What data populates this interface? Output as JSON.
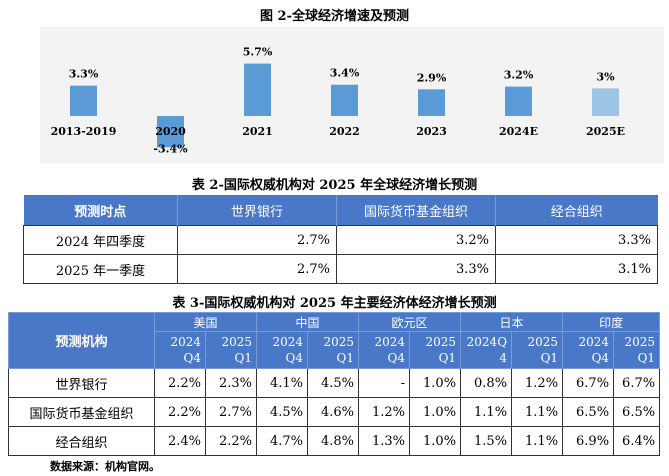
{
  "chart": {
    "title": "图 2-全球经济增速及预测"
  },
  "chart_data": {
    "type": "bar",
    "title": "图 2-全球经济增速及预测",
    "categories": [
      "2013-2019",
      "2020",
      "2021",
      "2022",
      "2023",
      "2024E",
      "2025E"
    ],
    "values": [
      3.3,
      -3.4,
      5.7,
      3.4,
      2.9,
      3.2,
      3.0
    ],
    "value_labels": [
      "3.3%",
      "-3.4%",
      "5.7%",
      "3.4%",
      "2.9%",
      "3.2%",
      "3%"
    ],
    "ylim": [
      -4,
      7
    ],
    "grid": false,
    "colors": [
      "#5b9bd5",
      "#5b9bd5",
      "#5b9bd5",
      "#5b9bd5",
      "#5b9bd5",
      "#5b9bd5",
      "#9dc3e6"
    ]
  },
  "table2": {
    "title": "表 2-国际权威机构对 2025 年全球经济增长预测",
    "headers": [
      "预测时点",
      "世界银行",
      "国际货币基金组织",
      "经合组织"
    ],
    "rows": [
      {
        "label": "2024 年四季度",
        "values": [
          "2.7%",
          "3.2%",
          "3.3%"
        ]
      },
      {
        "label": "2025 年一季度",
        "values": [
          "2.7%",
          "3.3%",
          "3.1%"
        ]
      }
    ]
  },
  "table3": {
    "title": "表 3-国际权威机构对 2025 年主要经济体经济增长预测",
    "corner": "预测机构",
    "groups": [
      "美国",
      "中国",
      "欧元区",
      "日本",
      "印度"
    ],
    "subheaders": [
      [
        "2024",
        "Q4"
      ],
      [
        "2025",
        "Q1"
      ],
      [
        "2024",
        "Q4"
      ],
      [
        "2025",
        "Q1"
      ],
      [
        "2024",
        "Q4"
      ],
      [
        "2025",
        "Q1"
      ],
      [
        "2024Q",
        "4"
      ],
      [
        "2025",
        "Q1"
      ],
      [
        "2024",
        "Q4"
      ],
      [
        "2025",
        "Q1"
      ]
    ],
    "rows": [
      {
        "label": "世界银行",
        "values": [
          "2.2%",
          "2.3%",
          "4.1%",
          "4.5%",
          "-",
          "1.0%",
          "0.8%",
          "1.2%",
          "6.7%",
          "6.7%"
        ]
      },
      {
        "label": "国际货币基金组织",
        "values": [
          "2.2%",
          "2.7%",
          "4.5%",
          "4.6%",
          "1.2%",
          "1.0%",
          "1.1%",
          "1.1%",
          "6.5%",
          "6.5%"
        ]
      },
      {
        "label": "经合组织",
        "values": [
          "2.4%",
          "2.2%",
          "4.7%",
          "4.8%",
          "1.3%",
          "1.0%",
          "1.5%",
          "1.1%",
          "6.9%",
          "6.4%"
        ]
      }
    ]
  },
  "source": "数据来源：机构官网。"
}
